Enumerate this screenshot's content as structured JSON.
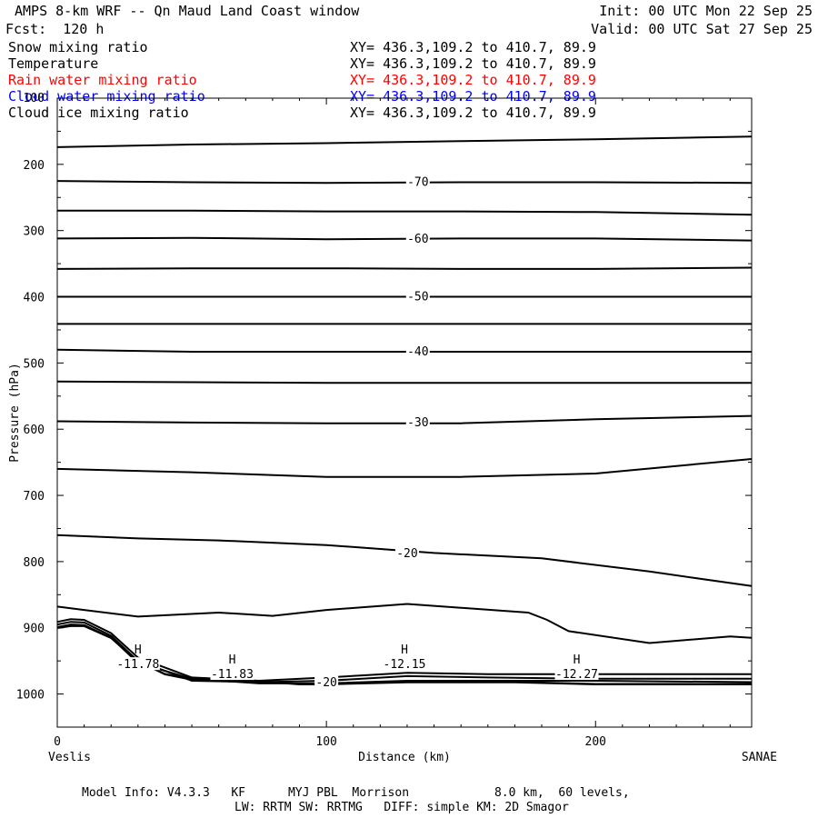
{
  "header": {
    "title": "AMPS 8-km WRF -- Qn Maud Land Coast window",
    "forecast": "Fcst:  120 h",
    "init": "Init: 00 UTC Mon 22 Sep 25",
    "valid": "Valid: 00 UTC Sat 27 Sep 25"
  },
  "fields": [
    {
      "name": "Snow mixing ratio",
      "xy": "XY= 436.3,109.2 to 410.7, 89.9",
      "color": "#000000"
    },
    {
      "name": "Temperature",
      "xy": "XY= 436.3,109.2 to 410.7, 89.9",
      "color": "#000000"
    },
    {
      "name": "Rain water mixing ratio",
      "xy": "XY= 436.3,109.2 to 410.7, 89.9",
      "color": "#ff0000"
    },
    {
      "name": "Cloud water mixing ratio",
      "xy": "XY= 436.3,109.2 to 410.7, 89.9",
      "color": "#0000ff"
    },
    {
      "name": "Cloud ice mixing ratio",
      "xy": "XY= 436.3,109.2 to 410.7, 89.9",
      "color": "#000000"
    }
  ],
  "footer": {
    "line1": "Model Info: V4.3.3   KF      MYJ PBL  Morrison            8.0 km,  60 levels,",
    "line2": "LW: RRTM SW: RRTMG   DIFF: simple KM: 2D Smagor"
  },
  "chart_data": {
    "type": "line",
    "xlabel": "Distance (km)",
    "ylabel": "Pressure (hPa)",
    "xlim": [
      0,
      258
    ],
    "ylim": [
      1050,
      100
    ],
    "x_ticks": [
      0,
      100,
      200
    ],
    "y_ticks": [
      200,
      300,
      400,
      500,
      600,
      700,
      800,
      900,
      1000
    ],
    "x_endpoint_labels": {
      "left": "Veslis",
      "right": "SANAE"
    },
    "contour_labels": [
      {
        "text": "-70",
        "x": 134,
        "p": 227
      },
      {
        "text": "-60",
        "x": 134,
        "p": 313
      },
      {
        "text": "-50",
        "x": 134,
        "p": 400
      },
      {
        "text": "-40",
        "x": 134,
        "p": 483
      },
      {
        "text": "-30",
        "x": 134,
        "p": 590
      },
      {
        "text": "-20",
        "x": 130,
        "p": 788
      },
      {
        "text": "-20",
        "x": 100,
        "p": 983
      }
    ],
    "highs": [
      {
        "text": "-11.78",
        "x": 30,
        "p": 950
      },
      {
        "text": "-11.83",
        "x": 65,
        "p": 965
      },
      {
        "text": "-12.15",
        "x": 129,
        "p": 950
      },
      {
        "text": "-12.27",
        "x": 193,
        "p": 965
      }
    ],
    "isotherms": [
      {
        "x": [
          0,
          50,
          100,
          150,
          200,
          258
        ],
        "p": [
          174,
          170,
          168,
          165,
          162,
          158
        ]
      },
      {
        "x": [
          0,
          50,
          100,
          150,
          200,
          258
        ],
        "p": [
          225,
          227,
          228,
          227,
          227,
          228
        ]
      },
      {
        "x": [
          0,
          50,
          100,
          150,
          200,
          258
        ],
        "p": [
          270,
          270,
          271,
          271,
          272,
          276
        ]
      },
      {
        "x": [
          0,
          50,
          100,
          150,
          200,
          258
        ],
        "p": [
          312,
          311,
          313,
          312,
          312,
          315
        ]
      },
      {
        "x": [
          0,
          50,
          100,
          150,
          200,
          258
        ],
        "p": [
          358,
          357,
          357,
          358,
          358,
          356
        ]
      },
      {
        "x": [
          0,
          50,
          100,
          150,
          200,
          258
        ],
        "p": [
          400,
          400,
          400,
          400,
          400,
          400
        ]
      },
      {
        "x": [
          0,
          50,
          100,
          150,
          200,
          258
        ],
        "p": [
          441,
          441,
          441,
          441,
          441,
          441
        ]
      },
      {
        "x": [
          0,
          50,
          100,
          150,
          200,
          258
        ],
        "p": [
          480,
          483,
          483,
          483,
          483,
          483
        ]
      },
      {
        "x": [
          0,
          50,
          100,
          150,
          200,
          258
        ],
        "p": [
          528,
          529,
          530,
          530,
          530,
          530
        ]
      },
      {
        "x": [
          0,
          50,
          100,
          150,
          200,
          258
        ],
        "p": [
          588,
          590,
          591,
          591,
          585,
          580
        ]
      },
      {
        "x": [
          0,
          50,
          100,
          150,
          200,
          258
        ],
        "p": [
          660,
          665,
          672,
          672,
          667,
          645
        ]
      },
      {
        "x": [
          0,
          30,
          60,
          100,
          140,
          180,
          220,
          258
        ],
        "p": [
          760,
          765,
          768,
          775,
          787,
          795,
          815,
          837
        ]
      },
      {
        "x": [
          0,
          10,
          30,
          60,
          80,
          100,
          130,
          175,
          182,
          190,
          220,
          250,
          258
        ],
        "p": [
          868,
          873,
          883,
          877,
          882,
          873,
          864,
          877,
          888,
          905,
          923,
          913,
          915
        ]
      },
      {
        "x": [
          0,
          5,
          10,
          20,
          30,
          50,
          75,
          100,
          130,
          160,
          200,
          258
        ],
        "p": [
          891,
          887,
          888,
          908,
          945,
          975,
          980,
          975,
          968,
          970,
          970,
          970
        ]
      },
      {
        "x": [
          0,
          5,
          10,
          20,
          30,
          50,
          75,
          100,
          130,
          160,
          200,
          258
        ],
        "p": [
          895,
          891,
          892,
          912,
          950,
          980,
          982,
          980,
          973,
          975,
          977,
          977
        ]
      },
      {
        "x": [
          0,
          5,
          10,
          20,
          30,
          50,
          75,
          100,
          130,
          160,
          200,
          258
        ],
        "p": [
          899,
          895,
          896,
          915,
          953,
          977,
          984,
          984,
          980,
          980,
          980,
          982
        ]
      }
    ],
    "terrain": {
      "x": [
        0,
        5,
        10,
        20,
        30,
        40,
        50,
        65,
        80,
        90,
        100,
        130,
        170,
        200,
        258
      ],
      "p": [
        900,
        897,
        897,
        915,
        950,
        970,
        978,
        980,
        982,
        985,
        985,
        982,
        982,
        985,
        985
      ]
    }
  }
}
